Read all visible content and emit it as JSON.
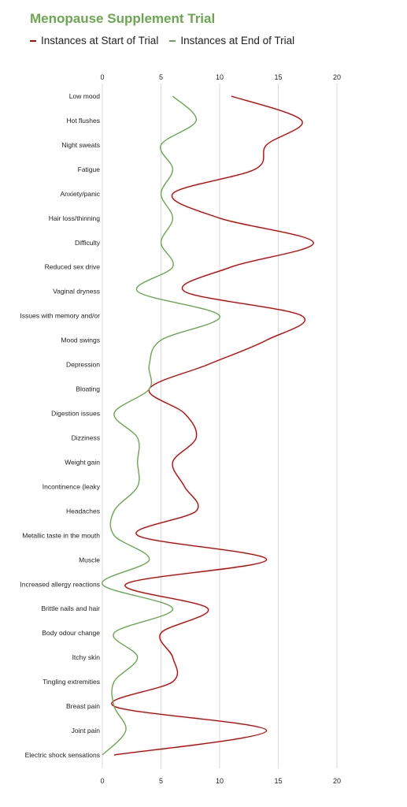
{
  "chart_data": {
    "type": "line",
    "title": "Menopause Supplement Trial",
    "xlim": [
      0,
      20
    ],
    "xticks": [
      "0",
      "5",
      "10",
      "15",
      "20"
    ],
    "grid": true,
    "legend_position": "top-left",
    "categories": [
      "Low mood",
      "Hot flushes",
      "Night sweats",
      "Fatigue",
      "Anxiety/panic",
      "Hair loss/thinning",
      "Difficulty",
      "Reduced sex drive",
      "Vaginal dryness",
      "Issues with memory and/or",
      "Mood swings",
      "Depression",
      "Bloating",
      "Digestion issues",
      "Dizziness",
      "Weight gain",
      "Incontinence (leaky",
      "Headaches",
      "Metallic taste in the mouth",
      "Muscle",
      "Increased allergy reactions",
      "Brittle nails and hair",
      "Body odour change",
      "Itchy skin",
      "Tingling extremities",
      "Breast pain",
      "Joint pain",
      "Electric shock sensations"
    ],
    "series": [
      {
        "name": "Instances at Start of Trial",
        "color": "#cc0000",
        "values": [
          11,
          17,
          14,
          13,
          6,
          10,
          18,
          11,
          7,
          17,
          14,
          9,
          4,
          7,
          8,
          6,
          7,
          8,
          3,
          14,
          2,
          9,
          5,
          6,
          6,
          1,
          14,
          1
        ]
      },
      {
        "name": "Instances at End of Trial",
        "color": "#6aa84f",
        "values": [
          6,
          8,
          5,
          6,
          5,
          6,
          5,
          6,
          3,
          10,
          5,
          4,
          4,
          1,
          3,
          3,
          3,
          1,
          1,
          4,
          0,
          6,
          1,
          3,
          1,
          1,
          2,
          0
        ]
      }
    ]
  }
}
